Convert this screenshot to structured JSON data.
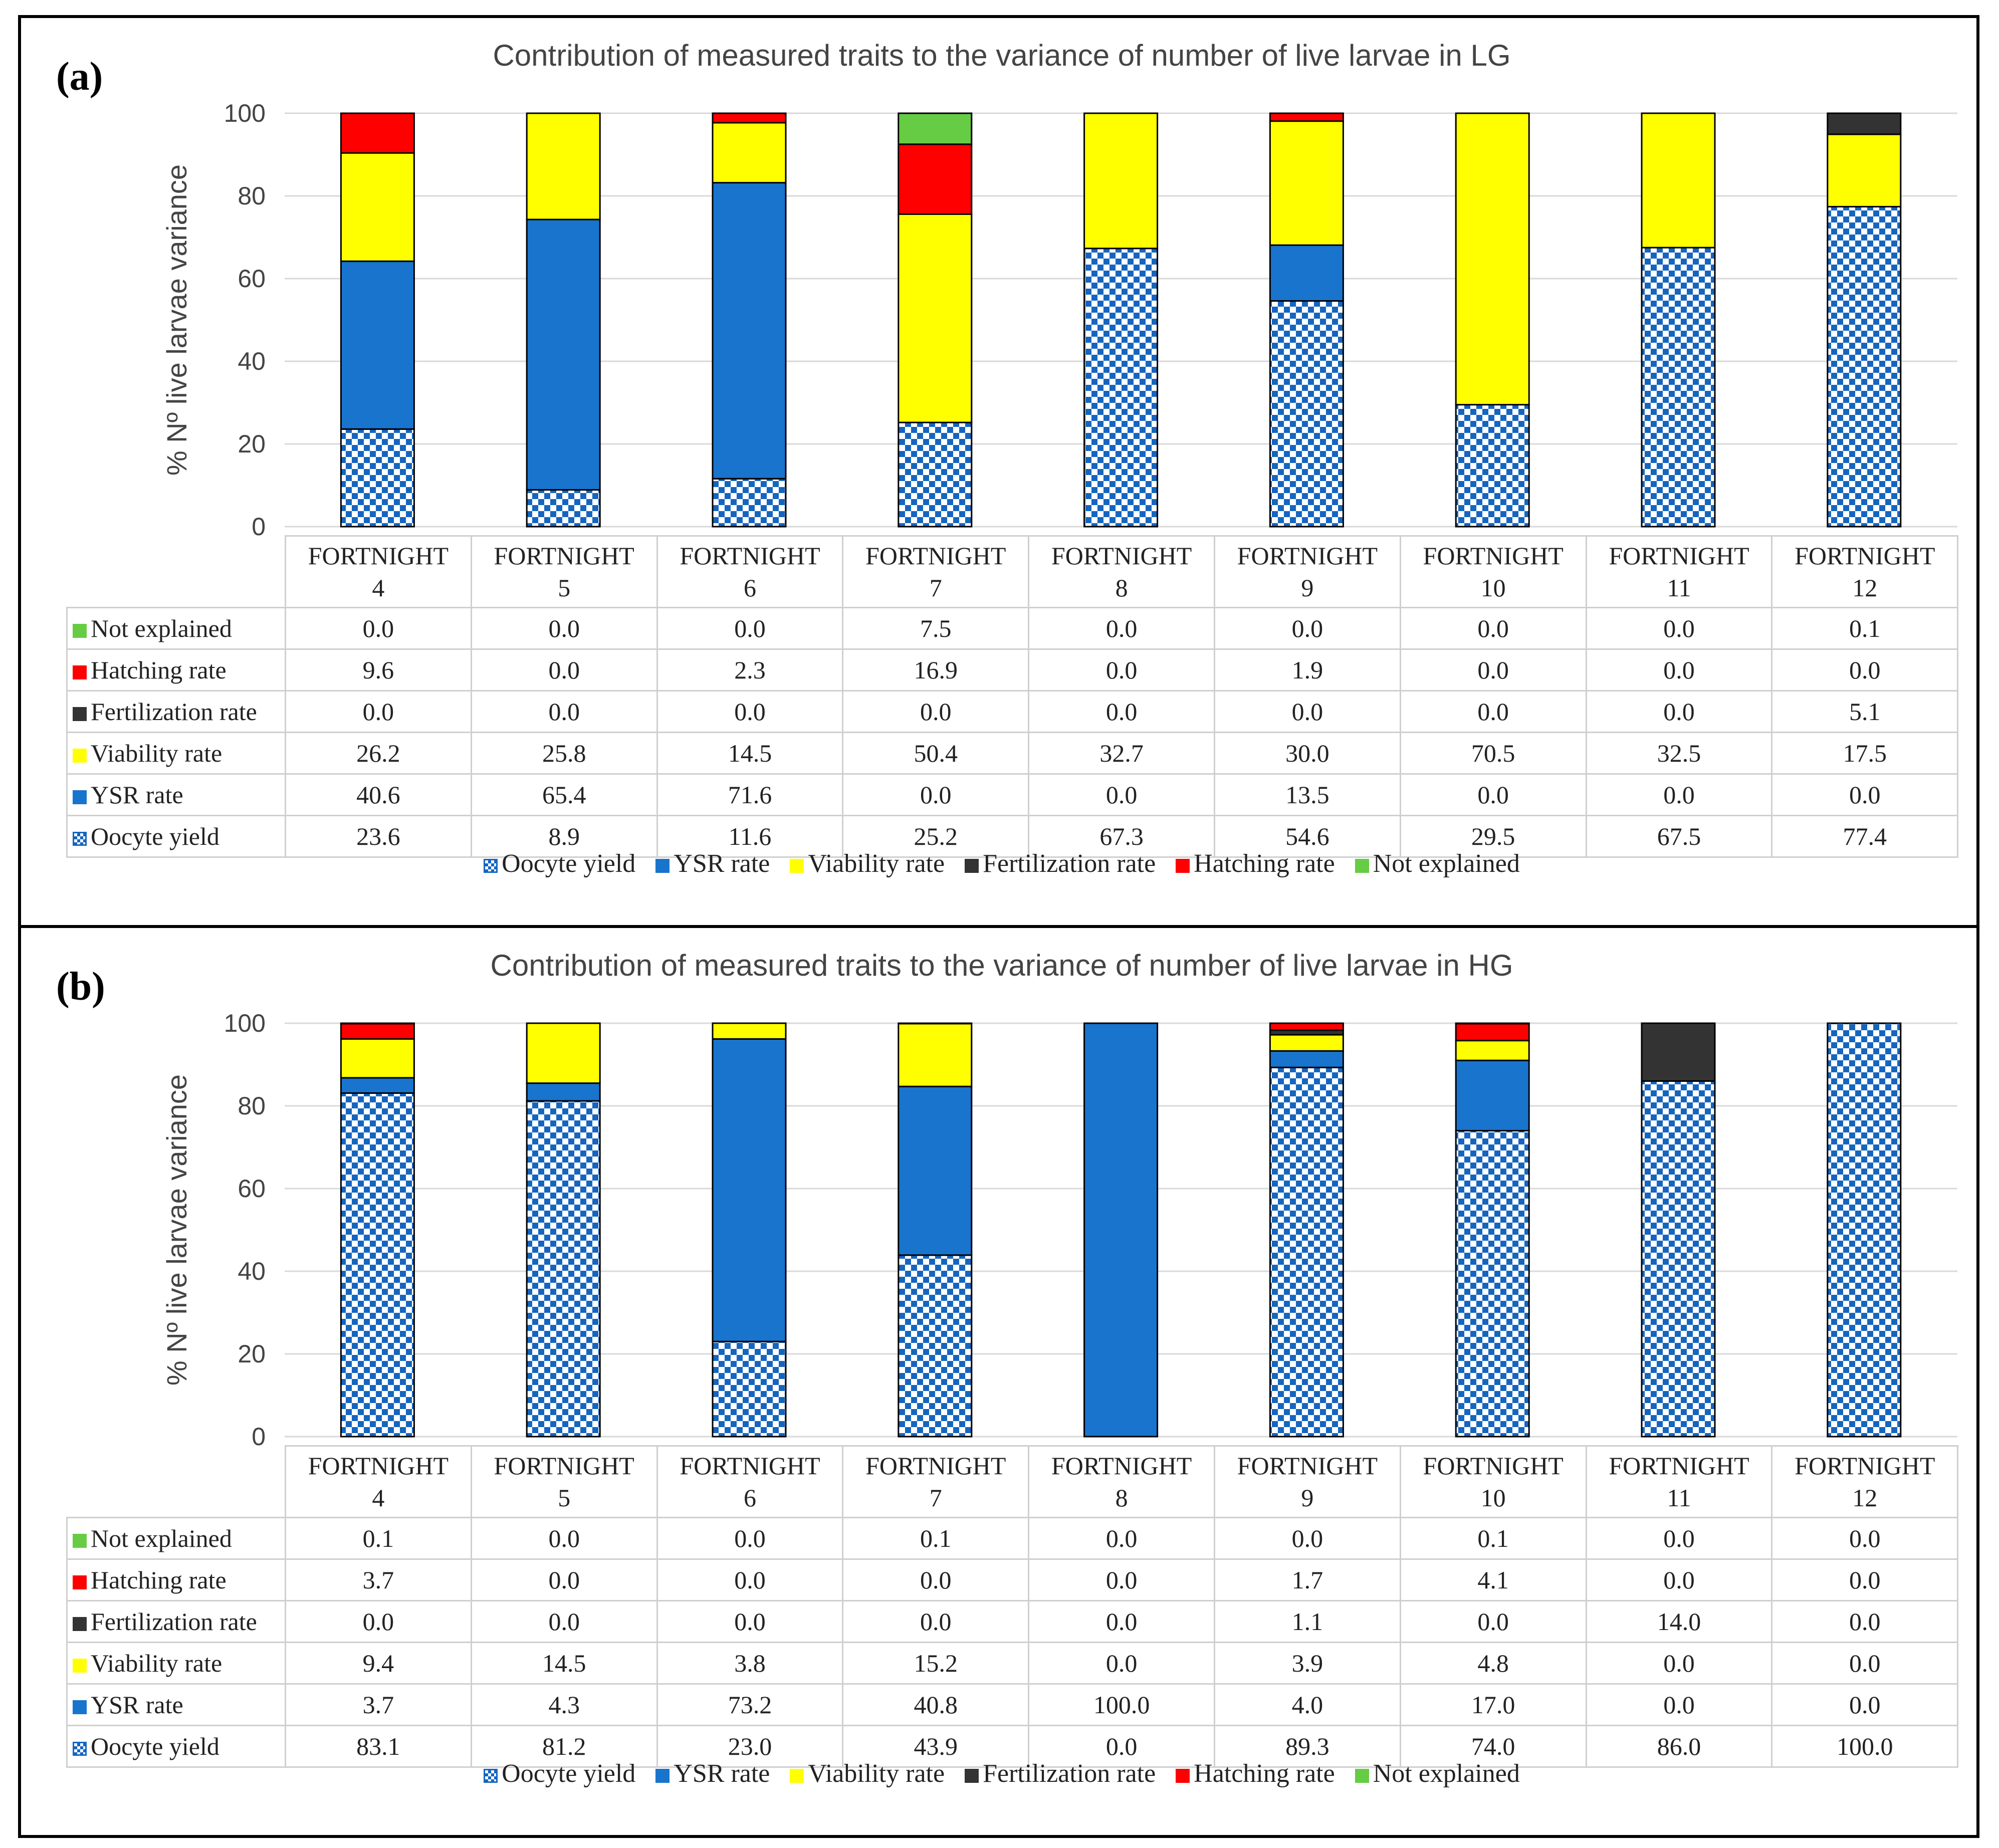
{
  "colors": {
    "oocyte": "#1565c0",
    "ysr": "#1874cd",
    "viability": "#ffff00",
    "fertilization": "#333333",
    "hatching": "#ff0000",
    "not_explained": "#66cc44"
  },
  "legend": [
    "Oocyte yield",
    "YSR rate",
    "Viability rate",
    "Fertilization rate",
    "Hatching rate",
    "Not explained"
  ],
  "chart_data": [
    {
      "panel": "(a)",
      "type": "bar",
      "stacked": true,
      "title": "Contribution of measured traits to the variance of number of live larvae in LG",
      "ylabel": "% Nº live larvae variance",
      "xlabel": "",
      "ylim": [
        0,
        100
      ],
      "yticks": [
        0,
        20,
        40,
        60,
        80,
        100
      ],
      "grid": true,
      "legend_position": "bottom",
      "categories": [
        {
          "line1": "FORTNIGHT",
          "line2": "4"
        },
        {
          "line1": "FORTNIGHT",
          "line2": "5"
        },
        {
          "line1": "FORTNIGHT",
          "line2": "6"
        },
        {
          "line1": "FORTNIGHT",
          "line2": "7"
        },
        {
          "line1": "FORTNIGHT",
          "line2": "8"
        },
        {
          "line1": "FORTNIGHT",
          "line2": "9"
        },
        {
          "line1": "FORTNIGHT",
          "line2": "10"
        },
        {
          "line1": "FORTNIGHT",
          "line2": "11"
        },
        {
          "line1": "FORTNIGHT",
          "line2": "12"
        }
      ],
      "series": [
        {
          "key": "oocyte",
          "name": "Oocyte yield",
          "values": [
            "23.6",
            "8.9",
            "11.6",
            "25.2",
            "67.3",
            "54.6",
            "29.5",
            "67.5",
            "77.4"
          ]
        },
        {
          "key": "ysr",
          "name": "YSR rate",
          "values": [
            "40.6",
            "65.4",
            "71.6",
            "0.0",
            "0.0",
            "13.5",
            "0.0",
            "0.0",
            "0.0"
          ]
        },
        {
          "key": "viability",
          "name": "Viability rate",
          "values": [
            "26.2",
            "25.8",
            "14.5",
            "50.4",
            "32.7",
            "30.0",
            "70.5",
            "32.5",
            "17.5"
          ]
        },
        {
          "key": "fertilization",
          "name": "Fertilization rate",
          "values": [
            "0.0",
            "0.0",
            "0.0",
            "0.0",
            "0.0",
            "0.0",
            "0.0",
            "0.0",
            "5.1"
          ]
        },
        {
          "key": "hatching",
          "name": "Hatching rate",
          "values": [
            "9.6",
            "0.0",
            "2.3",
            "16.9",
            "0.0",
            "1.9",
            "0.0",
            "0.0",
            "0.0"
          ]
        },
        {
          "key": "not_explained",
          "name": "Not explained",
          "values": [
            "0.0",
            "0.0",
            "0.0",
            "7.5",
            "0.0",
            "0.0",
            "0.0",
            "0.0",
            "0.1"
          ]
        }
      ]
    },
    {
      "panel": "(b)",
      "type": "bar",
      "stacked": true,
      "title": "Contribution of measured traits to the variance of number of live larvae in HG",
      "ylabel": "% Nº live larvae variance",
      "xlabel": "",
      "ylim": [
        0,
        100
      ],
      "yticks": [
        0,
        20,
        40,
        60,
        80,
        100
      ],
      "grid": true,
      "legend_position": "bottom",
      "categories": [
        {
          "line1": "FORTNIGHT",
          "line2": "4"
        },
        {
          "line1": "FORTNIGHT",
          "line2": "5"
        },
        {
          "line1": "FORTNIGHT",
          "line2": "6"
        },
        {
          "line1": "FORTNIGHT",
          "line2": "7"
        },
        {
          "line1": "FORTNIGHT",
          "line2": "8"
        },
        {
          "line1": "FORTNIGHT",
          "line2": "9"
        },
        {
          "line1": "FORTNIGHT",
          "line2": "10"
        },
        {
          "line1": "FORTNIGHT",
          "line2": "11"
        },
        {
          "line1": "FORTNIGHT",
          "line2": "12"
        }
      ],
      "series": [
        {
          "key": "oocyte",
          "name": "Oocyte yield",
          "values": [
            "83.1",
            "81.2",
            "23.0",
            "43.9",
            "0.0",
            "89.3",
            "74.0",
            "86.0",
            "100.0"
          ]
        },
        {
          "key": "ysr",
          "name": "YSR rate",
          "values": [
            "3.7",
            "4.3",
            "73.2",
            "40.8",
            "100.0",
            "4.0",
            "17.0",
            "0.0",
            "0.0"
          ]
        },
        {
          "key": "viability",
          "name": "Viability rate",
          "values": [
            "9.4",
            "14.5",
            "3.8",
            "15.2",
            "0.0",
            "3.9",
            "4.8",
            "0.0",
            "0.0"
          ]
        },
        {
          "key": "fertilization",
          "name": "Fertilization rate",
          "values": [
            "0.0",
            "0.0",
            "0.0",
            "0.0",
            "0.0",
            "1.1",
            "0.0",
            "14.0",
            "0.0"
          ]
        },
        {
          "key": "hatching",
          "name": "Hatching rate",
          "values": [
            "3.7",
            "0.0",
            "0.0",
            "0.0",
            "0.0",
            "1.7",
            "4.1",
            "0.0",
            "0.0"
          ]
        },
        {
          "key": "not_explained",
          "name": "Not explained",
          "values": [
            "0.1",
            "0.0",
            "0.0",
            "0.1",
            "0.0",
            "0.0",
            "0.1",
            "0.0",
            "0.0"
          ]
        }
      ]
    }
  ]
}
